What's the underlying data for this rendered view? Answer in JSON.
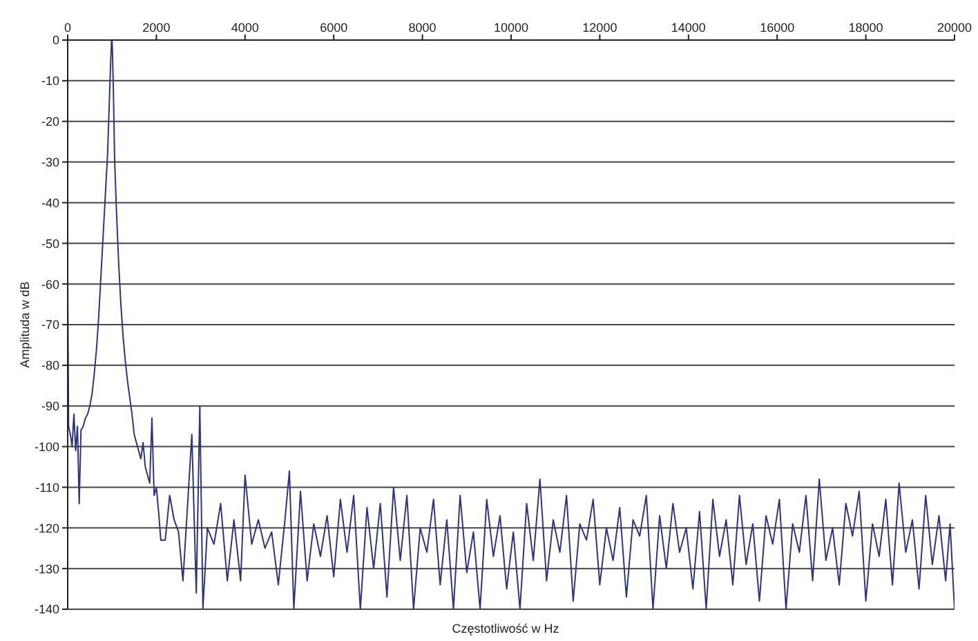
{
  "chart_data": {
    "type": "line",
    "xlabel": "Częstotliwość w Hz",
    "ylabel": "Amplituda w dB",
    "xlim": [
      0,
      20000
    ],
    "xticks": [
      0,
      2000,
      4000,
      6000,
      8000,
      10000,
      12000,
      14000,
      16000,
      18000,
      20000
    ],
    "ylim": [
      -140,
      0
    ],
    "yticks": [
      0,
      -10,
      -20,
      -30,
      -40,
      -50,
      -60,
      -70,
      -80,
      -90,
      -100,
      -110,
      -120,
      -130,
      -140
    ],
    "grid": "y",
    "legend": false,
    "marker": "none",
    "line_style": "solid",
    "series": [
      {
        "color": "#2e3580",
        "x": [
          0,
          20,
          60,
          100,
          140,
          180,
          220,
          260,
          300,
          350,
          400,
          450,
          500,
          550,
          600,
          650,
          700,
          750,
          800,
          850,
          900,
          940,
          970,
          990,
          1000,
          1010,
          1030,
          1060,
          1100,
          1150,
          1200,
          1250,
          1300,
          1350,
          1400,
          1450,
          1500,
          1550,
          1600,
          1650,
          1700,
          1750,
          1800,
          1850,
          1900,
          1950,
          2000,
          2050,
          2100,
          2200,
          2300,
          2400,
          2500,
          2600,
          2700,
          2800,
          2900,
          2980,
          3050,
          3150,
          3300,
          3450,
          3600,
          3750,
          3900,
          4000,
          4150,
          4300,
          4450,
          4600,
          4750,
          4900,
          5000,
          5100,
          5250,
          5400,
          5550,
          5700,
          5850,
          6000,
          6150,
          6300,
          6450,
          6600,
          6750,
          6900,
          7050,
          7200,
          7350,
          7500,
          7650,
          7800,
          7950,
          8100,
          8250,
          8400,
          8550,
          8700,
          8850,
          9000,
          9150,
          9300,
          9450,
          9600,
          9750,
          9900,
          10050,
          10200,
          10350,
          10500,
          10650,
          10800,
          10950,
          11100,
          11250,
          11400,
          11550,
          11700,
          11850,
          12000,
          12150,
          12300,
          12450,
          12600,
          12750,
          12900,
          13050,
          13200,
          13350,
          13500,
          13650,
          13800,
          13950,
          14100,
          14250,
          14400,
          14550,
          14700,
          14850,
          15000,
          15150,
          15300,
          15450,
          15600,
          15750,
          15900,
          16050,
          16200,
          16350,
          16500,
          16650,
          16800,
          16950,
          17100,
          17250,
          17400,
          17550,
          17700,
          17850,
          18000,
          18150,
          18300,
          18450,
          18600,
          18750,
          18900,
          19050,
          19200,
          19350,
          19500,
          19650,
          19800,
          19900,
          20000
        ],
        "values": [
          -58,
          -95,
          -97,
          -100,
          -92,
          -101,
          -95,
          -114,
          -96,
          -95,
          -93,
          -92,
          -90,
          -87,
          -82,
          -76,
          -68,
          -58,
          -48,
          -38,
          -28,
          -15,
          -5,
          0,
          0,
          -3,
          -12,
          -30,
          -42,
          -55,
          -65,
          -73,
          -79,
          -84,
          -88,
          -92,
          -97,
          -99,
          -101,
          -103,
          -99,
          -105,
          -107,
          -109,
          -93,
          -112,
          -110,
          -116,
          -123,
          -123,
          -112,
          -118,
          -121,
          -133,
          -115,
          -97,
          -136,
          -90,
          -140,
          -120,
          -124,
          -114,
          -133,
          -118,
          -133,
          -107,
          -124,
          -118,
          -125,
          -121,
          -134,
          -118,
          -106,
          -140,
          -111,
          -133,
          -119,
          -127,
          -117,
          -132,
          -113,
          -126,
          -112,
          -140,
          -115,
          -130,
          -114,
          -137,
          -110,
          -128,
          -112,
          -140,
          -120,
          -126,
          -113,
          -134,
          -118,
          -140,
          -112,
          -131,
          -121,
          -140,
          -113,
          -127,
          -117,
          -135,
          -121,
          -140,
          -114,
          -128,
          -108,
          -133,
          -118,
          -126,
          -112,
          -138,
          -119,
          -123,
          -113,
          -134,
          -120,
          -128,
          -115,
          -137,
          -118,
          -122,
          -112,
          -140,
          -117,
          -130,
          -114,
          -126,
          -120,
          -135,
          -116,
          -140,
          -113,
          -127,
          -118,
          -134,
          -112,
          -129,
          -119,
          -138,
          -117,
          -124,
          -113,
          -140,
          -119,
          -126,
          -112,
          -133,
          -108,
          -128,
          -120,
          -134,
          -114,
          -122,
          -111,
          -138,
          -119,
          -127,
          -113,
          -134,
          -109,
          -126,
          -118,
          -135,
          -112,
          -129,
          -117,
          -133,
          -119,
          -140
        ]
      }
    ]
  }
}
